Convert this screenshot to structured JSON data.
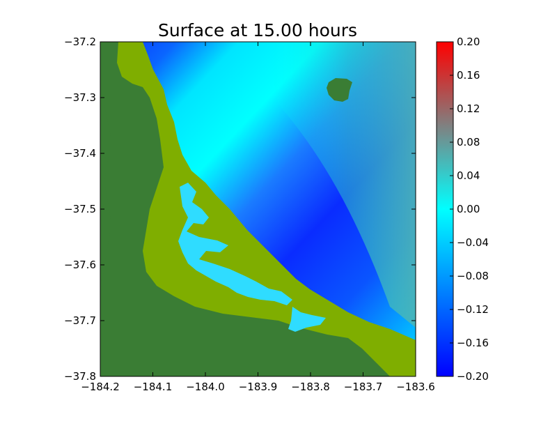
{
  "chart_data": {
    "type": "heatmap",
    "title": "Surface at 15.00 hours",
    "xlim": [
      -184.2,
      -183.6
    ],
    "ylim": [
      -37.8,
      -37.2
    ],
    "x_ticks": [
      "−184.2",
      "−184.1",
      "−184.0",
      "−183.9",
      "−183.8",
      "−183.7",
      "−183.6"
    ],
    "y_ticks": [
      "−37.2",
      "−37.3",
      "−37.4",
      "−37.5",
      "−37.6",
      "−37.7",
      "−37.8"
    ],
    "colorbar": {
      "range": [
        -0.2,
        0.2
      ],
      "ticks": [
        "0.20",
        "0.16",
        "0.12",
        "0.08",
        "0.04",
        "0.00",
        "−0.04",
        "−0.08",
        "−0.12",
        "−0.16",
        "−0.20"
      ],
      "colors": [
        "#0000ff",
        "#00ffff",
        "#808080",
        "#ff0000"
      ]
    },
    "land_colors": {
      "high": "#3a7d34",
      "low": "#7fae00"
    },
    "grid": false,
    "legend": "none"
  }
}
